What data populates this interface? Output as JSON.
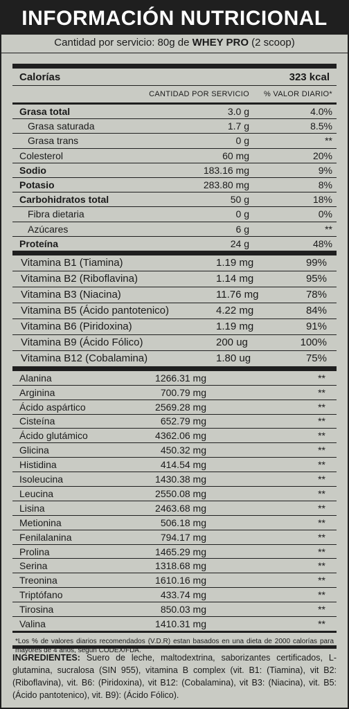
{
  "title": "INFORMACIÓN NUTRICIONAL",
  "serving": {
    "prefix": "Cantidad por servicio: 80g de ",
    "product": "WHEY PRO",
    "suffix": " (2 scoop)"
  },
  "calories": {
    "label": "Calorías",
    "value": "323 kcal"
  },
  "columns": {
    "amount": "CANTIDAD POR SERVICIO",
    "daily": "% VALOR DIARIO*"
  },
  "macros": [
    {
      "name": "Grasa total",
      "amount": "3.0 g",
      "pct": "4.0%",
      "bold": true,
      "sub": false
    },
    {
      "name": "Grasa saturada",
      "amount": "1.7 g",
      "pct": "8.5%",
      "bold": false,
      "sub": true
    },
    {
      "name": "Grasa trans",
      "amount": "0 g",
      "pct": "**",
      "bold": false,
      "sub": true
    },
    {
      "name": "Colesterol",
      "amount": "60 mg",
      "pct": "20%",
      "bold": false,
      "sub": false
    },
    {
      "name": "Sodio",
      "amount": "183.16 mg",
      "pct": "9%",
      "bold": true,
      "sub": false
    },
    {
      "name": "Potasio",
      "amount": "283.80 mg",
      "pct": "8%",
      "bold": true,
      "sub": false
    },
    {
      "name": "Carbohidratos total",
      "amount": "50 g",
      "pct": "18%",
      "bold": true,
      "sub": false
    },
    {
      "name": "Fibra dietaria",
      "amount": "0 g",
      "pct": "0%",
      "bold": false,
      "sub": true
    },
    {
      "name": "Azúcares",
      "amount": "6 g",
      "pct": "**",
      "bold": false,
      "sub": true
    },
    {
      "name": "Proteína",
      "amount": "24 g",
      "pct": "48%",
      "bold": true,
      "sub": false
    }
  ],
  "vitamins": [
    {
      "name": "Vitamina B1 (Tiamina)",
      "amount": "1.19 mg",
      "pct": "99%"
    },
    {
      "name": "Vitamina B2 (Riboflavina)",
      "amount": "1.14 mg",
      "pct": "95%"
    },
    {
      "name": "Vitamina B3 (Niacina)",
      "amount": "11.76 mg",
      "pct": "78%"
    },
    {
      "name": "Vitamina B5 (Ácido pantotenico)",
      "amount": "4.22 mg",
      "pct": "84%"
    },
    {
      "name": "Vitamina B6 (Piridoxina)",
      "amount": "1.19 mg",
      "pct": "91%"
    },
    {
      "name": "Vitamina B9 (Ácido Fólico)",
      "amount": "200 ug",
      "pct": "100%"
    },
    {
      "name": "Vitamina B12 (Cobalamina)",
      "amount": "1.80 ug",
      "pct": "75%"
    }
  ],
  "aminoacids": [
    {
      "name": "Alanina",
      "amount": "1266.31 mg",
      "pct": "**"
    },
    {
      "name": "Arginina",
      "amount": "700.79 mg",
      "pct": "**"
    },
    {
      "name": "Ácido aspártico",
      "amount": "2569.28 mg",
      "pct": "**"
    },
    {
      "name": "Cisteína",
      "amount": "652.79 mg",
      "pct": "**"
    },
    {
      "name": "Ácido glutámico",
      "amount": "4362.06 mg",
      "pct": "**"
    },
    {
      "name": "Glicina",
      "amount": "450.32 mg",
      "pct": "**"
    },
    {
      "name": "Histidina",
      "amount": "414.54 mg",
      "pct": "**"
    },
    {
      "name": "Isoleucina",
      "amount": "1430.38 mg",
      "pct": "**"
    },
    {
      "name": "Leucina",
      "amount": "2550.08 mg",
      "pct": "**"
    },
    {
      "name": "Lisina",
      "amount": "2463.68 mg",
      "pct": "**"
    },
    {
      "name": "Metionina",
      "amount": "506.18 mg",
      "pct": "**"
    },
    {
      "name": "Fenilalanina",
      "amount": "794.17 mg",
      "pct": "**"
    },
    {
      "name": "Prolina",
      "amount": "1465.29 mg",
      "pct": "**"
    },
    {
      "name": "Serina",
      "amount": "1318.68 mg",
      "pct": "**"
    },
    {
      "name": "Treonina",
      "amount": "1610.16 mg",
      "pct": "**"
    },
    {
      "name": "Triptófano",
      "amount": "433.74 mg",
      "pct": "**"
    },
    {
      "name": "Tirosina",
      "amount": "850.03 mg",
      "pct": "**"
    },
    {
      "name": "Valina",
      "amount": "1410.31 mg",
      "pct": "**"
    }
  ],
  "footnote": "*Los % de valores diarios recomendados (V.D.R) estan basados en una dieta de 2000 calorías para mayores de 4 años, según CODEX/FDA.",
  "ingredients": {
    "label": "INGREDIENTES:",
    "text": " Suero de leche, maltodextrina, saborizantes certificados, L-glutamina, sucralosa (SIN 955), vitamina B complex (vit. B1: (Tiamina), vit B2: (Riboflavina), vit. B6: (Piridoxina), vit B12: (Cobalamina), vit B3: (Niacina), vit. B5: (Ácido pantotenico), vit. B9): (Ácido Fólico)."
  }
}
